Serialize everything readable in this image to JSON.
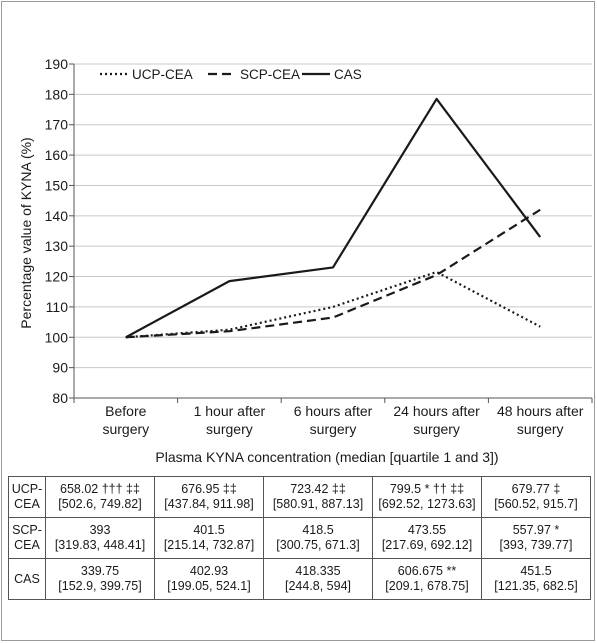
{
  "chart_data": {
    "type": "line",
    "ylabel": "Percentage value of KYNA (%)",
    "xlabel": "Plasma KYNA concentration (median [quartile 1 and 3])",
    "ylim": [
      80,
      190
    ],
    "yticks": [
      "80",
      "90",
      "100",
      "110",
      "120",
      "130",
      "140",
      "150",
      "160",
      "170",
      "180",
      "190"
    ],
    "grid": true,
    "legend_position": "top-left",
    "categories": [
      [
        "Before",
        "surgery"
      ],
      [
        "1 hour after",
        "surgery"
      ],
      [
        "6 hours after",
        "surgery"
      ],
      [
        "24 hours after",
        "surgery"
      ],
      [
        "48 hours after",
        "surgery"
      ]
    ],
    "series": [
      {
        "name": "UCP-CEA",
        "style": "dotted",
        "values": [
          100,
          102.5,
          110,
          121.5,
          103.5
        ]
      },
      {
        "name": "SCP-CEA",
        "style": "dashed",
        "values": [
          100,
          102,
          106.5,
          120.5,
          142
        ]
      },
      {
        "name": "CAS",
        "style": "solid",
        "values": [
          100,
          118.5,
          123,
          178.5,
          133
        ]
      }
    ]
  },
  "table": {
    "rows": [
      {
        "label": [
          "UCP-",
          "CEA"
        ],
        "cells": [
          [
            "658.02 ††† ‡‡",
            "[502.6, 749.82]"
          ],
          [
            "676.95 ‡‡",
            "[437.84, 911.98]"
          ],
          [
            "723.42 ‡‡",
            "[580.91, 887.13]"
          ],
          [
            "799.5 * †† ‡‡",
            "[692.52, 1273.63]"
          ],
          [
            "679.77 ‡",
            "[560.52, 915.7]"
          ]
        ]
      },
      {
        "label": [
          "SCP-",
          "CEA"
        ],
        "cells": [
          [
            "393",
            "[319.83, 448.41]"
          ],
          [
            "401.5",
            "[215.14, 732.87]"
          ],
          [
            "418.5",
            "[300.75, 671.3]"
          ],
          [
            "473.55",
            "[217.69, 692.12]"
          ],
          [
            "557.97 *",
            "[393, 739.77]"
          ]
        ]
      },
      {
        "label": [
          "CAS",
          ""
        ],
        "cells": [
          [
            "339.75",
            "[152.9, 399.75]"
          ],
          [
            "402.93",
            "[199.05, 524.1]"
          ],
          [
            "418.335",
            "[244.8, 594]"
          ],
          [
            "606.675 **",
            "[209.1, 678.75]"
          ],
          [
            "451.5",
            "[121.35, 682.5]"
          ]
        ]
      }
    ]
  }
}
